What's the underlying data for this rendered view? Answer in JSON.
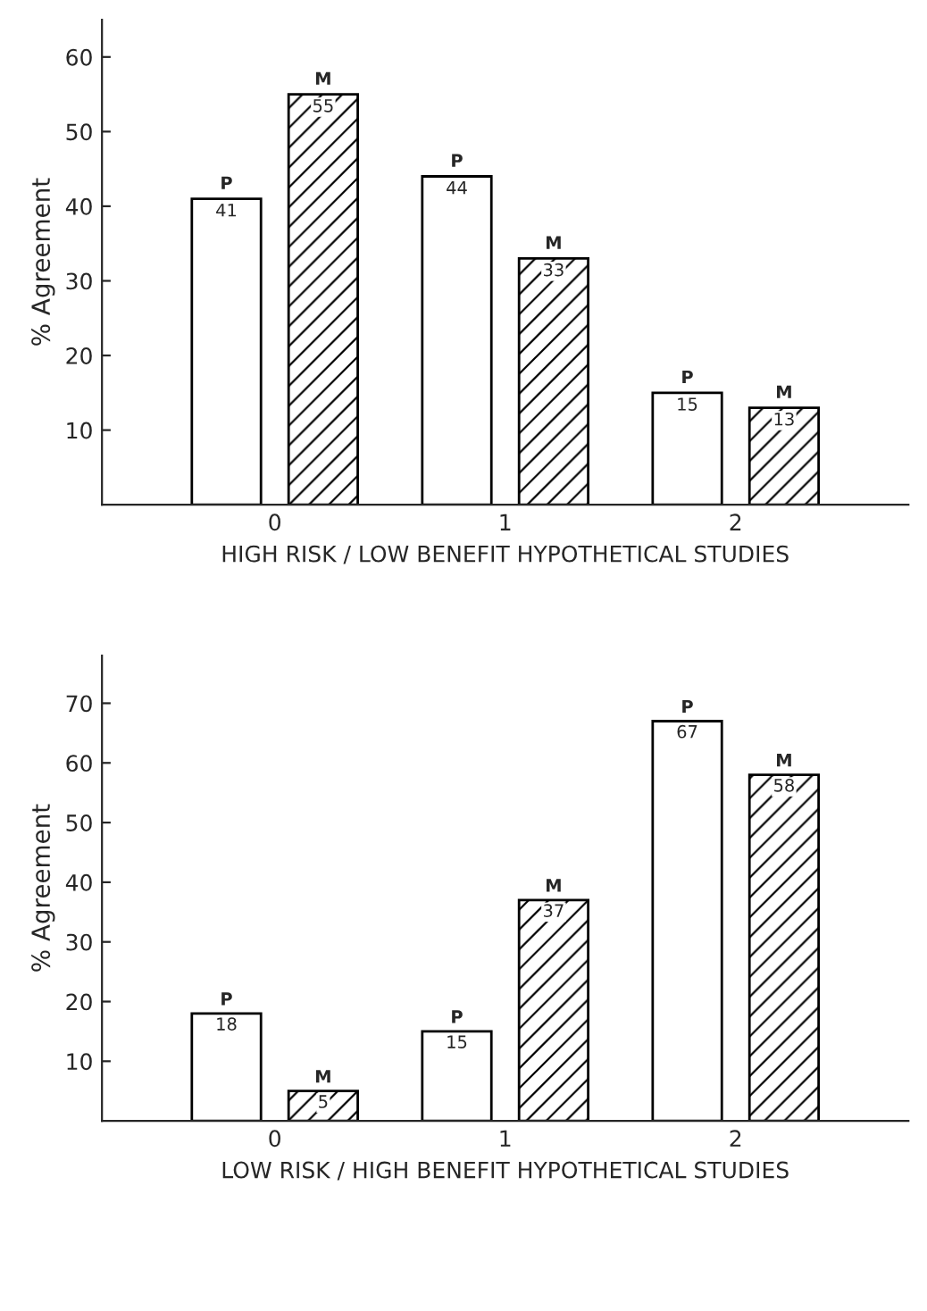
{
  "chart_data": [
    {
      "type": "bar",
      "categories": [
        "0",
        "1",
        "2"
      ],
      "xlabel": "HIGH RISK / LOW BENEFIT HYPOTHETICAL STUDIES",
      "ylabel": "% Agreement",
      "ylim": [
        0,
        65
      ],
      "yticks": [
        10,
        20,
        30,
        40,
        50,
        60
      ],
      "data_labels": true,
      "legend": false,
      "grid": false,
      "series": [
        {
          "name": "P",
          "color": "#ffffff",
          "values": [
            41,
            44,
            15
          ]
        },
        {
          "name": "M",
          "color": "#000000",
          "values": [
            55,
            33,
            13
          ]
        }
      ]
    },
    {
      "type": "bar",
      "categories": [
        "0",
        "1",
        "2"
      ],
      "xlabel": "LOW RISK / HIGH BENEFIT HYPOTHETICAL STUDIES",
      "ylabel": "% Agreement",
      "ylim": [
        0,
        78
      ],
      "yticks": [
        10,
        20,
        30,
        40,
        50,
        60,
        70
      ],
      "data_labels": true,
      "legend": false,
      "grid": false,
      "series": [
        {
          "name": "P",
          "color": "#ffffff",
          "values": [
            18,
            15,
            67
          ]
        },
        {
          "name": "M",
          "color": "#000000",
          "values": [
            5,
            37,
            58
          ]
        }
      ]
    }
  ]
}
